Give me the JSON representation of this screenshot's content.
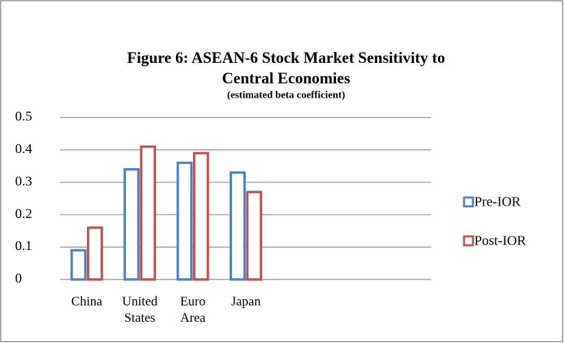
{
  "chart_data": {
    "type": "bar",
    "title": "Figure 6: ASEAN-6 Stock Market Sensitivity to Central Economies",
    "subtitle": "(estimated beta coefficient)",
    "categories": [
      "China",
      "United States",
      "Euro Area",
      "Japan"
    ],
    "series": [
      {
        "name": "Pre-IOR",
        "color": "#4f81bd",
        "values": [
          0.09,
          0.34,
          0.36,
          0.33
        ]
      },
      {
        "name": "Post-IOR",
        "color": "#c0504d",
        "values": [
          0.16,
          0.41,
          0.39,
          0.27
        ]
      }
    ],
    "ylim": [
      0,
      0.5
    ],
    "yticks": [
      0,
      0.1,
      0.2,
      0.3,
      0.4,
      0.5
    ],
    "grid": true,
    "legend": "right"
  }
}
